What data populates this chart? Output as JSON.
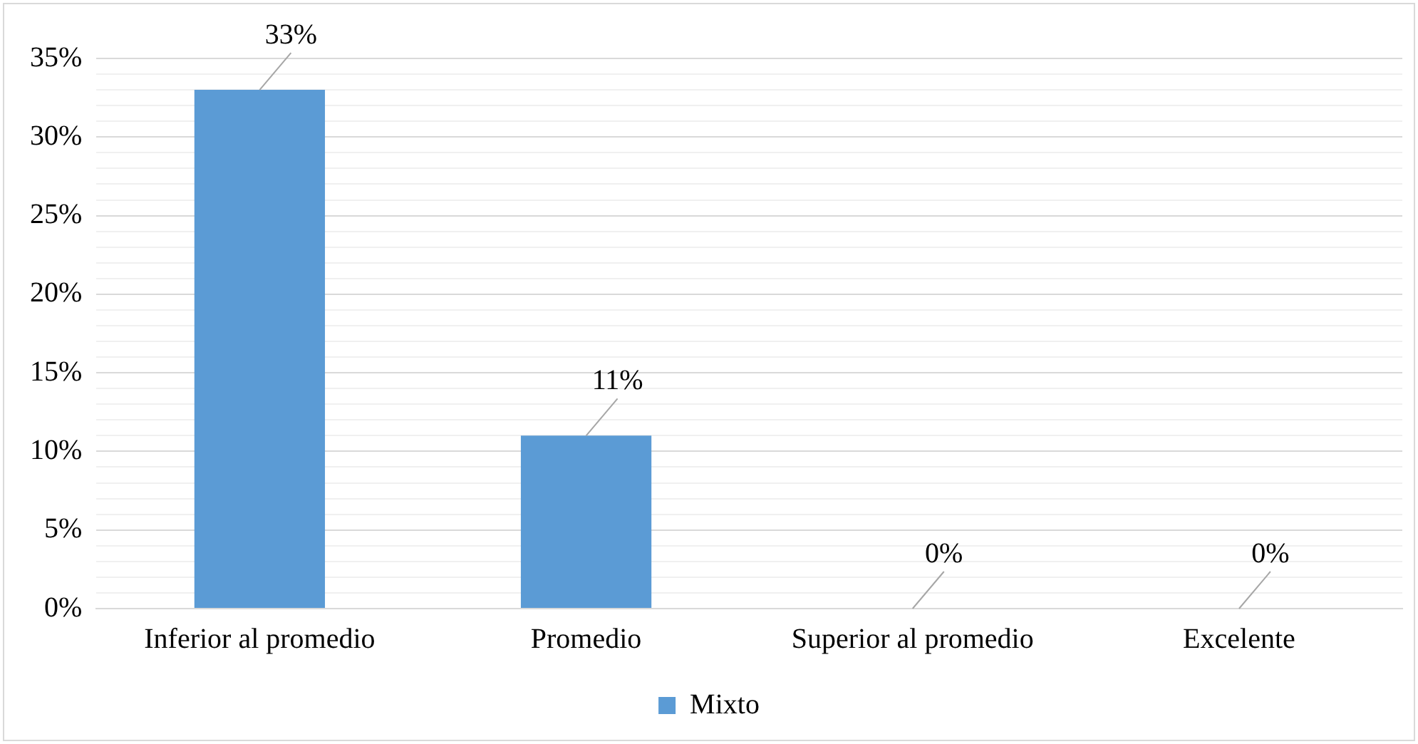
{
  "chart_data": {
    "type": "bar",
    "categories": [
      "Inferior al promedio",
      "Promedio",
      "Superior al promedio",
      "Excelente"
    ],
    "series": [
      {
        "name": "Mixto",
        "color": "#5b9bd5",
        "values": [
          33,
          11,
          0,
          0
        ]
      }
    ],
    "value_labels": [
      "33%",
      "11%",
      "0%",
      "0%"
    ],
    "ylim": [
      0,
      35
    ],
    "yticks": [
      {
        "value": 0,
        "label": "0%"
      },
      {
        "value": 1,
        "label": null
      },
      {
        "value": 2,
        "label": null
      },
      {
        "value": 3,
        "label": null
      },
      {
        "value": 4,
        "label": null
      },
      {
        "value": 5,
        "label": "5%"
      },
      {
        "value": 6,
        "label": null
      },
      {
        "value": 7,
        "label": null
      },
      {
        "value": 8,
        "label": null
      },
      {
        "value": 9,
        "label": null
      },
      {
        "value": 10,
        "label": "10%"
      },
      {
        "value": 11,
        "label": null
      },
      {
        "value": 12,
        "label": null
      },
      {
        "value": 13,
        "label": null
      },
      {
        "value": 14,
        "label": null
      },
      {
        "value": 15,
        "label": "15%"
      },
      {
        "value": 16,
        "label": null
      },
      {
        "value": 17,
        "label": null
      },
      {
        "value": 18,
        "label": null
      },
      {
        "value": 19,
        "label": null
      },
      {
        "value": 20,
        "label": "20%"
      },
      {
        "value": 21,
        "label": null
      },
      {
        "value": 22,
        "label": null
      },
      {
        "value": 23,
        "label": null
      },
      {
        "value": 24,
        "label": null
      },
      {
        "value": 25,
        "label": "25%"
      },
      {
        "value": 26,
        "label": null
      },
      {
        "value": 27,
        "label": null
      },
      {
        "value": 28,
        "label": null
      },
      {
        "value": 29,
        "label": null
      },
      {
        "value": 30,
        "label": "30%"
      },
      {
        "value": 31,
        "label": null
      },
      {
        "value": 32,
        "label": null
      },
      {
        "value": 33,
        "label": null
      },
      {
        "value": 34,
        "label": null
      },
      {
        "value": 35,
        "label": "35%"
      }
    ],
    "grid": "y",
    "legend": "bottom"
  }
}
